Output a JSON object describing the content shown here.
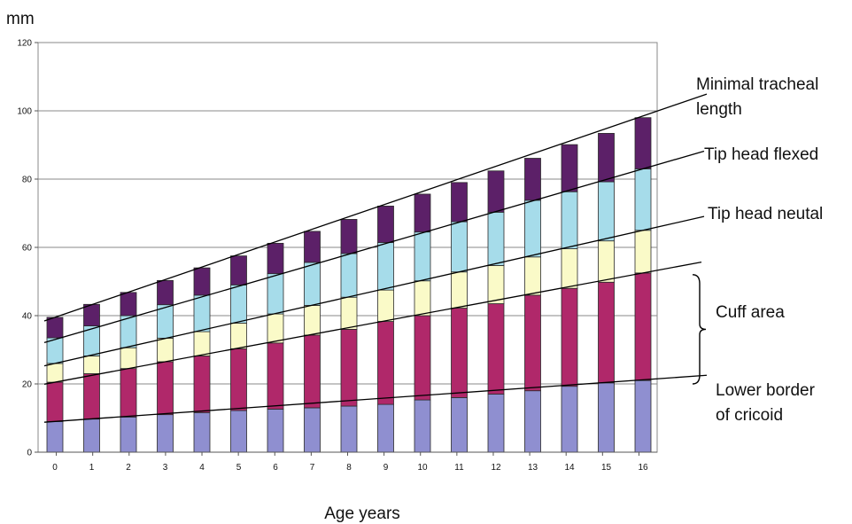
{
  "chart_data": {
    "type": "bar",
    "stacked": true,
    "title": "",
    "ylabel": "mm",
    "xlabel": "Age years",
    "categories": [
      "0",
      "1",
      "2",
      "3",
      "4",
      "5",
      "6",
      "7",
      "8",
      "9",
      "10",
      "11",
      "12",
      "13",
      "14",
      "15",
      "16"
    ],
    "ylim": [
      0,
      120
    ],
    "yticks": [
      0,
      20,
      40,
      60,
      80,
      100,
      120
    ],
    "grid": true,
    "series": [
      {
        "color": "#8f8fd0",
        "values": [
          9,
          9.7,
          10.3,
          11,
          11.6,
          12.2,
          12.6,
          13,
          13.5,
          14,
          15.3,
          16,
          17,
          18,
          19.3,
          20.3,
          21
        ]
      },
      {
        "color": "#b0286a",
        "values": [
          11.5,
          13.3,
          14.2,
          15.5,
          16.6,
          18.1,
          19.4,
          21.3,
          22.5,
          24.3,
          24.7,
          26.2,
          26.5,
          28,
          28.7,
          29.5,
          31.5
        ]
      },
      {
        "color": "#fafac8",
        "values": [
          5.5,
          5.2,
          6.1,
          6.9,
          7.1,
          7.5,
          8.5,
          8.7,
          9.4,
          9.2,
          10.2,
          10.6,
          11.2,
          11.2,
          11.6,
          12.1,
          12.5
        ]
      },
      {
        "color": "#a6dcea",
        "values": [
          7.5,
          8.8,
          9.4,
          9.8,
          10.7,
          11.2,
          11.8,
          12.6,
          12.8,
          13.9,
          14.3,
          14.7,
          15.6,
          16.6,
          16.7,
          17.3,
          18
        ]
      },
      {
        "color": "#5c2068",
        "values": [
          6,
          6.3,
          6.8,
          7.1,
          8,
          8.5,
          8.9,
          9.1,
          10,
          10.7,
          11.1,
          11.5,
          12.1,
          12.3,
          13.8,
          14.2,
          15
        ]
      }
    ],
    "trend_lines": [
      {
        "label": "Minimal tracheal length",
        "y_start": 39.5,
        "y_end": 98.5
      },
      {
        "label": "Tip head flexed",
        "y_start": 33,
        "y_end": 83
      },
      {
        "label": "Tip head neutal",
        "y_start": 26,
        "y_end": 65
      },
      {
        "label": "",
        "y_start": 20.5,
        "y_end": 52.5
      },
      {
        "label": "",
        "y_start": 9,
        "y_end": 21.2
      }
    ],
    "annotations": [
      {
        "label": "Cuff area",
        "y_range": [
          20,
          52
        ]
      },
      {
        "label": "Lower border of cricoid",
        "y": 21
      }
    ]
  }
}
